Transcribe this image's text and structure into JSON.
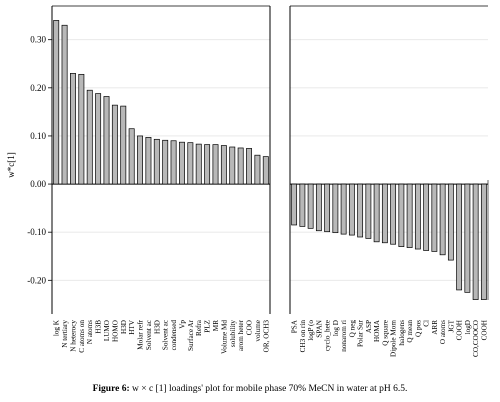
{
  "chart_data": {
    "type": "bar",
    "ylabel": "w*c[1]",
    "ylim": [
      -0.27,
      0.37
    ],
    "yticks": [
      -0.2,
      -0.1,
      0.0,
      0.1,
      0.2,
      0.3
    ],
    "ytick_labels": [
      "-0.20",
      "-0.10",
      "0.00",
      "0.10",
      "0.20",
      "0.30"
    ],
    "grid": "horizontal",
    "bar_color": "#b8b8b8",
    "panels": [
      {
        "categories": [
          "log K",
          "N tertiary",
          "N heterocy",
          "C atoms on",
          "N atoms",
          "H3B",
          "LUMO",
          "HOMO",
          "H3D",
          "HTV",
          "Molar refr",
          "Solvent ac",
          "H3D",
          "Solvent ac",
          "condensed",
          "Vp",
          "Surface Ar",
          "Refra",
          "PLZ",
          "MR",
          "Volume Md",
          "solubility",
          "arom heter",
          "COO",
          "volume",
          "OR, OCH3"
        ],
        "values": [
          0.34,
          0.33,
          0.23,
          0.228,
          0.195,
          0.188,
          0.182,
          0.164,
          0.162,
          0.115,
          0.1,
          0.097,
          0.093,
          0.091,
          0.09,
          0.087,
          0.086,
          0.083,
          0.082,
          0.082,
          0.08,
          0.077,
          0.075,
          0.074,
          0.06,
          0.057
        ]
      },
      {
        "categories": [
          "PSA",
          "CH3 on rin",
          "logP (o",
          "SPAN",
          "cyclo_hete",
          "log D",
          "nonarom ri",
          "Q neg",
          "Polar Sur",
          "ASP",
          "HOMA",
          "Q square",
          "Dipole Mom",
          "halogens",
          "Q mean",
          "Q pos",
          "Cl",
          "ARR",
          "O atoms",
          "JGT",
          "COOH",
          "logD",
          "CO,COOCO",
          "COOH"
        ],
        "values": [
          -0.085,
          -0.088,
          -0.092,
          -0.097,
          -0.099,
          -0.101,
          -0.104,
          -0.106,
          -0.11,
          -0.113,
          -0.12,
          -0.122,
          -0.125,
          -0.13,
          -0.132,
          -0.135,
          -0.138,
          -0.14,
          -0.147,
          -0.158,
          -0.22,
          -0.225,
          -0.24,
          -0.24
        ]
      }
    ]
  },
  "caption": {
    "prefix": "Figure 6:",
    "text": " w × c [1] loadings' plot for mobile phase 70% MeCN in water at pH 6.5."
  }
}
